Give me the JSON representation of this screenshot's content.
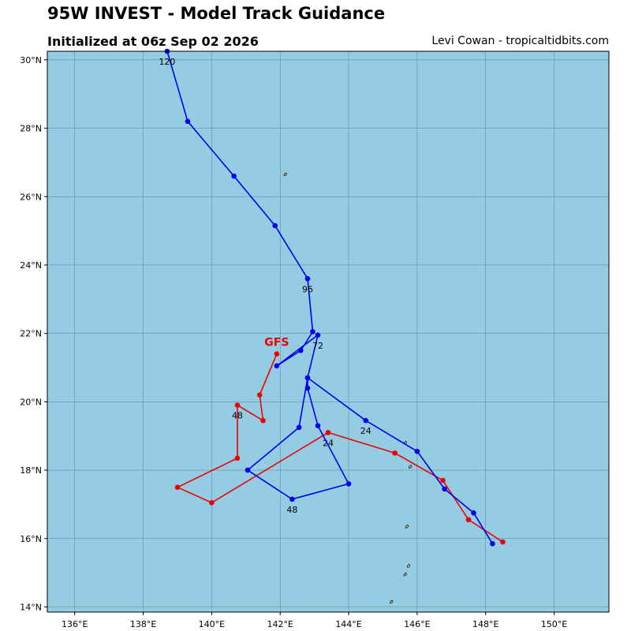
{
  "header": {
    "title": "95W INVEST - Model Track Guidance",
    "subtitle": "Initialized at 06z Sep 02 2026",
    "credit": "Levi Cowan - tropicaltidbits.com"
  },
  "map": {
    "lon_range": [
      135.2,
      151.6
    ],
    "lat_range": [
      13.85,
      30.25
    ],
    "ocean_color": "#94cde3",
    "land_color": "#c9c2a5",
    "grid": true
  },
  "axes": {
    "lon_ticks": [
      {
        "value": 136,
        "label": "136°E"
      },
      {
        "value": 138,
        "label": "138°E"
      },
      {
        "value": 140,
        "label": "140°E"
      },
      {
        "value": 142,
        "label": "142°E"
      },
      {
        "value": 144,
        "label": "144°E"
      },
      {
        "value": 146,
        "label": "146°E"
      },
      {
        "value": 148,
        "label": "148°E"
      },
      {
        "value": 150,
        "label": "150°E"
      }
    ],
    "lat_ticks": [
      {
        "value": 30,
        "label": "30°N"
      },
      {
        "value": 28,
        "label": "28°N"
      },
      {
        "value": 26,
        "label": "26°N"
      },
      {
        "value": 24,
        "label": "24°N"
      },
      {
        "value": 22,
        "label": "22°N"
      },
      {
        "value": 20,
        "label": "20°N"
      },
      {
        "value": 18,
        "label": "18°N"
      },
      {
        "value": 16,
        "label": "16°N"
      },
      {
        "value": 14,
        "label": "14°N"
      }
    ]
  },
  "tracks": [
    {
      "name": "GFS",
      "color": "#ee0000",
      "model_label": {
        "text": "GFS",
        "lon": 141.9,
        "lat": 21.75
      },
      "points": [
        {
          "lon": 148.5,
          "lat": 15.9
        },
        {
          "lon": 147.5,
          "lat": 16.55
        },
        {
          "lon": 146.75,
          "lat": 17.7
        },
        {
          "lon": 145.35,
          "lat": 18.5
        },
        {
          "lon": 143.4,
          "lat": 19.1
        },
        {
          "lon": 140.0,
          "lat": 17.05
        },
        {
          "lon": 139.0,
          "lat": 17.5
        },
        {
          "lon": 140.75,
          "lat": 18.35
        },
        {
          "lon": 140.75,
          "lat": 19.9
        },
        {
          "lon": 141.5,
          "lat": 19.45
        },
        {
          "lon": 141.4,
          "lat": 20.2
        },
        {
          "lon": 141.9,
          "lat": 21.4
        }
      ],
      "hour_labels": [
        {
          "text": "24",
          "lon": 143.4,
          "lat": 18.8
        },
        {
          "text": "48",
          "lon": 140.75,
          "lat": 19.6
        }
      ]
    },
    {
      "name": "",
      "color": "#0000ee",
      "points": [
        {
          "lon": 148.2,
          "lat": 15.85
        },
        {
          "lon": 147.65,
          "lat": 16.75
        },
        {
          "lon": 146.8,
          "lat": 17.45
        },
        {
          "lon": 146.0,
          "lat": 18.55
        },
        {
          "lon": 144.5,
          "lat": 19.45
        },
        {
          "lon": 142.8,
          "lat": 20.7
        },
        {
          "lon": 142.8,
          "lat": 20.4
        },
        {
          "lon": 143.1,
          "lat": 19.3
        },
        {
          "lon": 144.0,
          "lat": 17.6
        },
        {
          "lon": 142.35,
          "lat": 17.15
        },
        {
          "lon": 141.05,
          "lat": 18.0
        },
        {
          "lon": 142.55,
          "lat": 19.25
        },
        {
          "lon": 142.8,
          "lat": 20.7
        },
        {
          "lon": 143.1,
          "lat": 21.95
        },
        {
          "lon": 141.9,
          "lat": 21.05
        },
        {
          "lon": 142.6,
          "lat": 21.5
        },
        {
          "lon": 142.95,
          "lat": 22.05
        },
        {
          "lon": 142.8,
          "lat": 23.6
        },
        {
          "lon": 141.85,
          "lat": 25.15
        },
        {
          "lon": 140.65,
          "lat": 26.6
        },
        {
          "lon": 139.3,
          "lat": 28.2
        },
        {
          "lon": 138.7,
          "lat": 30.25
        }
      ],
      "hour_labels": [
        {
          "text": "24",
          "lon": 144.5,
          "lat": 19.15
        },
        {
          "text": "48",
          "lon": 142.35,
          "lat": 16.85
        },
        {
          "text": "72",
          "lon": 143.1,
          "lat": 21.65
        },
        {
          "text": "96",
          "lon": 142.8,
          "lat": 23.3
        },
        {
          "text": "120",
          "lon": 138.7,
          "lat": 29.95
        }
      ]
    }
  ],
  "islands": [
    {
      "lon": 142.15,
      "lat": 26.65
    },
    {
      "lon": 145.8,
      "lat": 18.1
    },
    {
      "lon": 145.65,
      "lat": 18.8
    },
    {
      "lon": 145.7,
      "lat": 16.35
    },
    {
      "lon": 145.75,
      "lat": 15.2
    },
    {
      "lon": 145.65,
      "lat": 14.95
    },
    {
      "lon": 145.25,
      "lat": 14.15
    }
  ]
}
